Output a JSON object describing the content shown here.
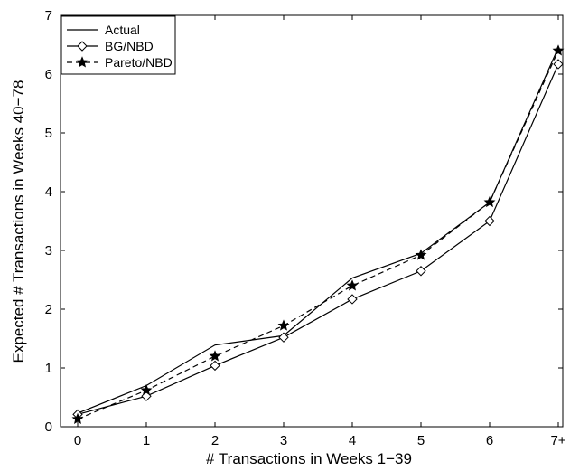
{
  "chart_data": {
    "type": "line",
    "categories": [
      "0",
      "1",
      "2",
      "3",
      "4",
      "5",
      "6",
      "7+"
    ],
    "xlabel": "# Transactions in Weeks 1−39",
    "ylabel": "Expected # Transactions in Weeks 40−78",
    "ylim": [
      0,
      7
    ],
    "yticks": [
      "0",
      "1",
      "2",
      "3",
      "4",
      "5",
      "6",
      "7"
    ],
    "grid": false,
    "legend_position": "top-left",
    "series": [
      {
        "name": "Actual",
        "line_style": "solid",
        "marker": "none",
        "values": [
          0.23,
          0.7,
          1.39,
          1.55,
          2.53,
          2.95,
          3.82,
          6.45
        ]
      },
      {
        "name": "BG/NBD",
        "line_style": "solid",
        "marker": "diamond",
        "values": [
          0.21,
          0.52,
          1.04,
          1.52,
          2.17,
          2.65,
          3.5,
          6.17
        ]
      },
      {
        "name": "Pareto/NBD",
        "line_style": "dashed",
        "marker": "star",
        "values": [
          0.13,
          0.62,
          1.2,
          1.72,
          2.4,
          2.92,
          3.82,
          6.4
        ]
      }
    ]
  }
}
